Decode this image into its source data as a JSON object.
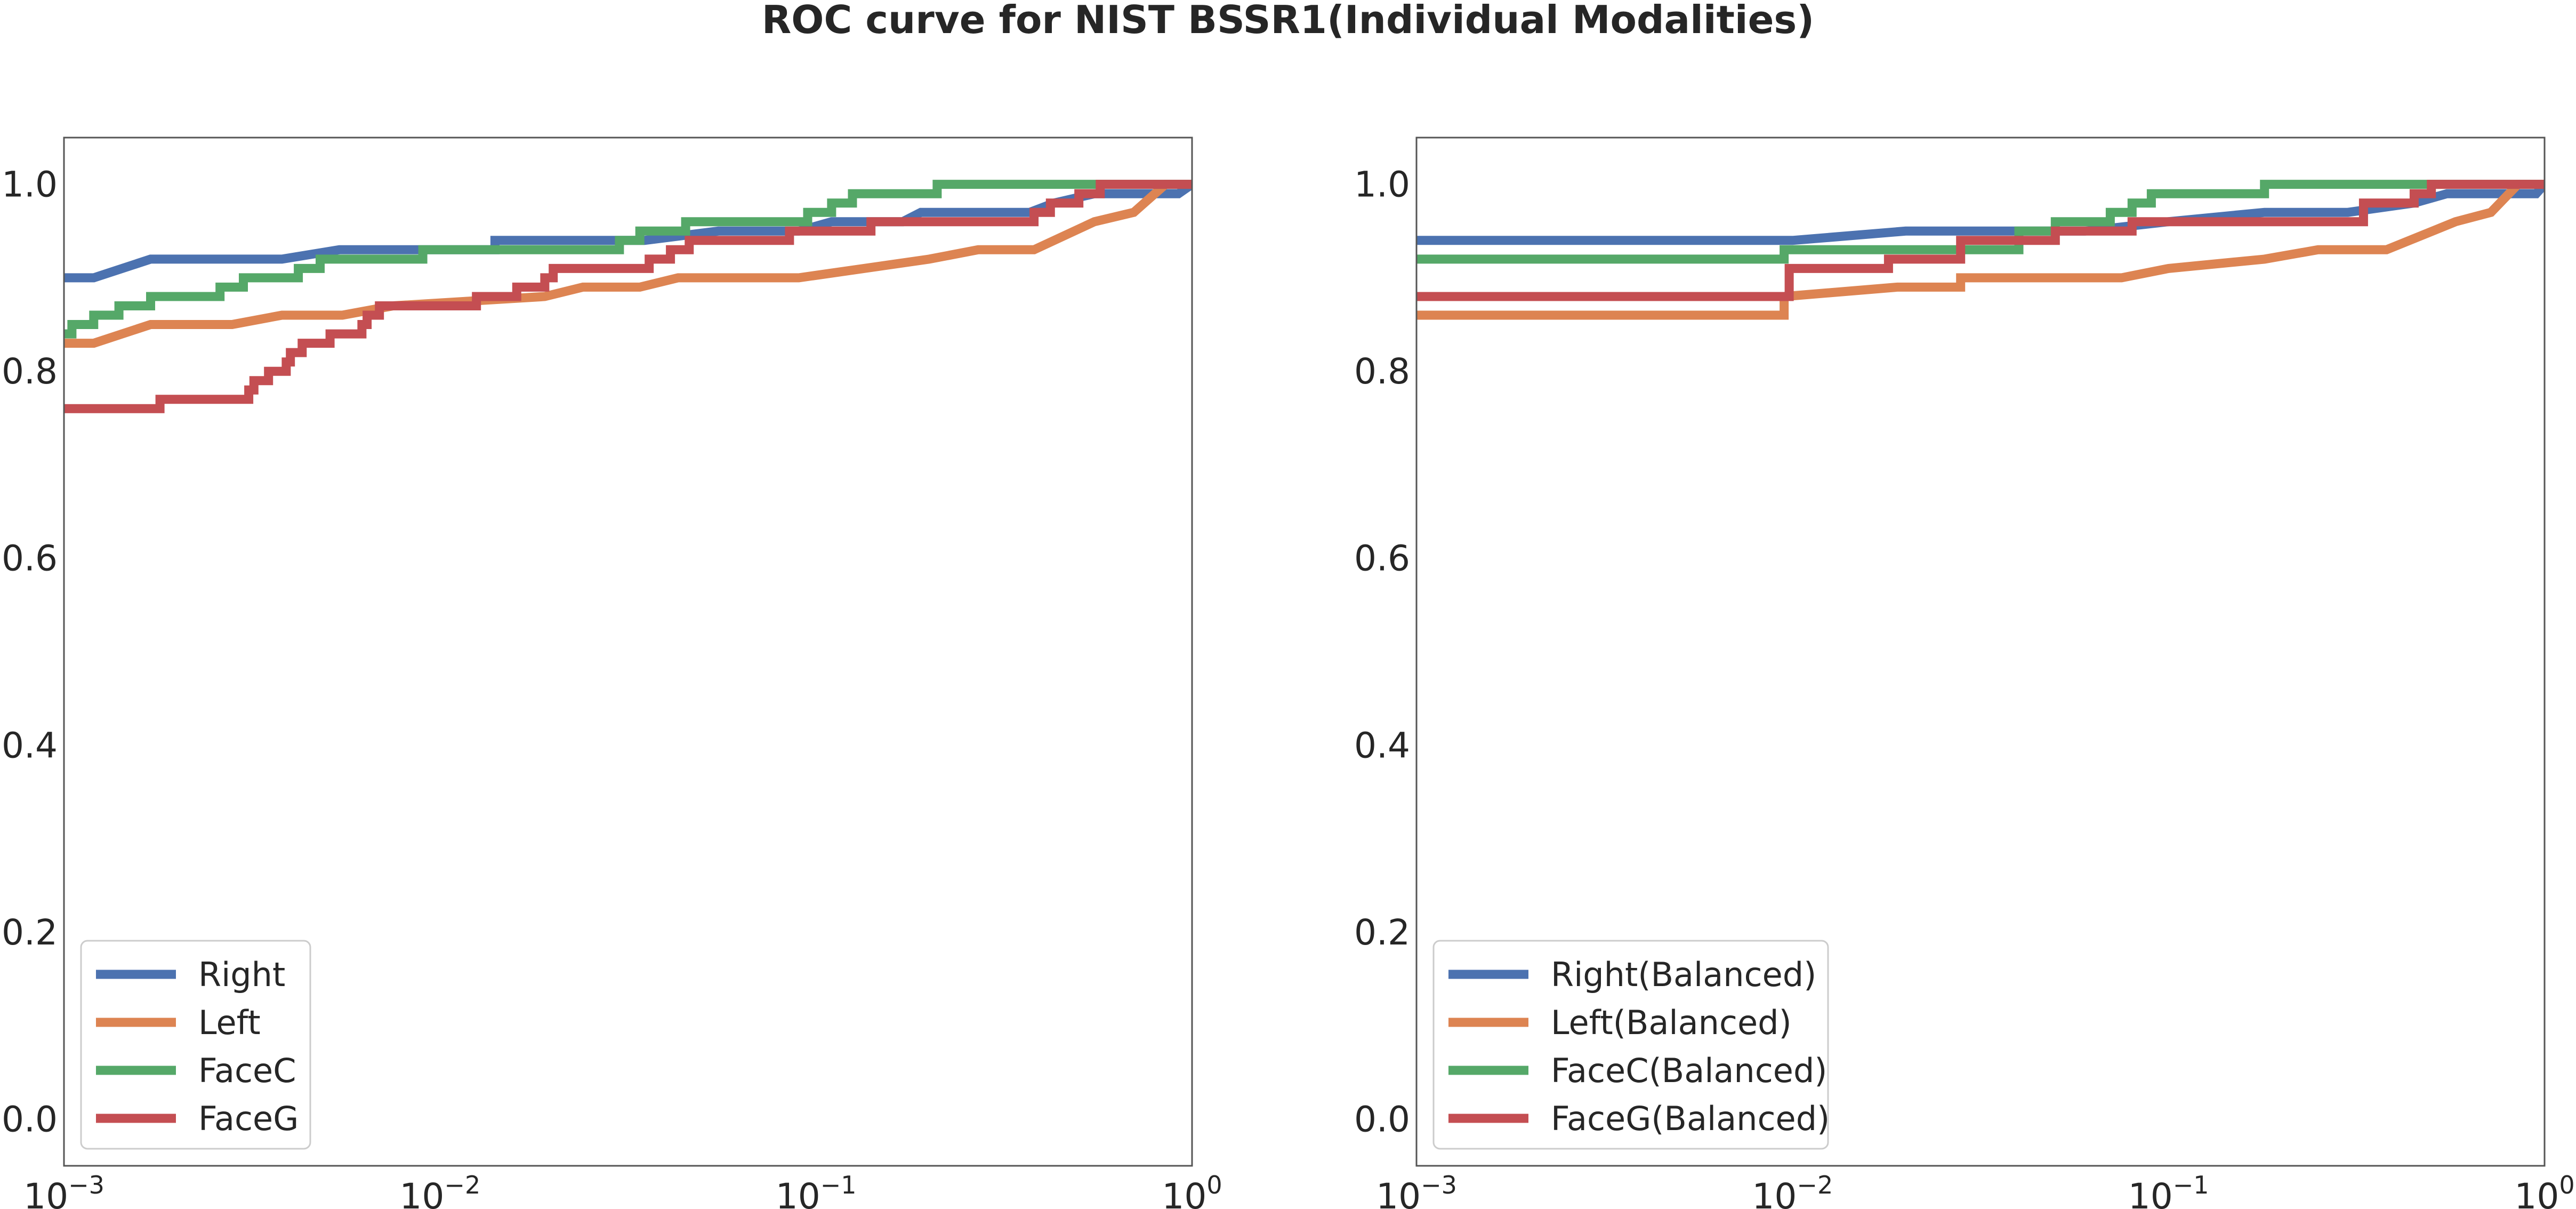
{
  "figure_title": "ROC curve for NIST BSSR1(Individual Modalities)",
  "chart_data": [
    {
      "type": "line",
      "title": "",
      "xlabel": "",
      "ylabel": "",
      "xscale": "log",
      "xlim": [
        0.001,
        1
      ],
      "ylim": [
        -0.05,
        1.05
      ],
      "x_ticks": [
        {
          "base": "10",
          "exp": "−3"
        },
        {
          "base": "10",
          "exp": "−2"
        },
        {
          "base": "10",
          "exp": "−1"
        },
        {
          "base": "10",
          "exp": "0"
        }
      ],
      "y_ticks": [
        "0.0",
        "0.2",
        "0.4",
        "0.6",
        "0.8",
        "1.0"
      ],
      "grid": false,
      "legend_position": "lower-left",
      "series": [
        {
          "name": "Right",
          "color": "#4c72b0",
          "points": [
            [
              0.001,
              0.9
            ],
            [
              0.0012,
              0.9
            ],
            [
              0.0017,
              0.92
            ],
            [
              0.0038,
              0.92
            ],
            [
              0.0054,
              0.93
            ],
            [
              0.014,
              0.93
            ],
            [
              0.014,
              0.94
            ],
            [
              0.035,
              0.94
            ],
            [
              0.055,
              0.95
            ],
            [
              0.09,
              0.95
            ],
            [
              0.11,
              0.96
            ],
            [
              0.17,
              0.96
            ],
            [
              0.19,
              0.97
            ],
            [
              0.37,
              0.97
            ],
            [
              0.43,
              0.98
            ],
            [
              0.55,
              0.99
            ],
            [
              0.92,
              0.99
            ],
            [
              1.0,
              1.0
            ]
          ]
        },
        {
          "name": "Left",
          "color": "#dd8452",
          "points": [
            [
              0.001,
              0.83
            ],
            [
              0.0012,
              0.83
            ],
            [
              0.0017,
              0.85
            ],
            [
              0.0028,
              0.85
            ],
            [
              0.0038,
              0.86
            ],
            [
              0.0055,
              0.86
            ],
            [
              0.0075,
              0.87
            ],
            [
              0.019,
              0.88
            ],
            [
              0.024,
              0.89
            ],
            [
              0.034,
              0.89
            ],
            [
              0.043,
              0.9
            ],
            [
              0.09,
              0.9
            ],
            [
              0.2,
              0.92
            ],
            [
              0.27,
              0.93
            ],
            [
              0.38,
              0.93
            ],
            [
              0.55,
              0.96
            ],
            [
              0.7,
              0.97
            ],
            [
              0.85,
              1.0
            ],
            [
              1.0,
              1.0
            ]
          ]
        },
        {
          "name": "FaceC",
          "color": "#55a868",
          "points": [
            [
              0.001,
              0.84
            ],
            [
              0.00105,
              0.84
            ],
            [
              0.00105,
              0.85
            ],
            [
              0.0012,
              0.85
            ],
            [
              0.0012,
              0.86
            ],
            [
              0.0014,
              0.86
            ],
            [
              0.0014,
              0.87
            ],
            [
              0.0017,
              0.87
            ],
            [
              0.0017,
              0.88
            ],
            [
              0.0026,
              0.88
            ],
            [
              0.0026,
              0.89
            ],
            [
              0.003,
              0.89
            ],
            [
              0.003,
              0.9
            ],
            [
              0.0042,
              0.9
            ],
            [
              0.0042,
              0.91
            ],
            [
              0.0048,
              0.91
            ],
            [
              0.0048,
              0.92
            ],
            [
              0.009,
              0.92
            ],
            [
              0.009,
              0.93
            ],
            [
              0.03,
              0.93
            ],
            [
              0.03,
              0.94
            ],
            [
              0.034,
              0.94
            ],
            [
              0.034,
              0.95
            ],
            [
              0.045,
              0.95
            ],
            [
              0.045,
              0.96
            ],
            [
              0.095,
              0.96
            ],
            [
              0.095,
              0.97
            ],
            [
              0.11,
              0.97
            ],
            [
              0.11,
              0.98
            ],
            [
              0.125,
              0.98
            ],
            [
              0.125,
              0.99
            ],
            [
              0.21,
              0.99
            ],
            [
              0.21,
              1.0
            ],
            [
              1.0,
              1.0
            ]
          ]
        },
        {
          "name": "FaceG",
          "color": "#c44e52",
          "points": [
            [
              0.001,
              0.76
            ],
            [
              0.0018,
              0.76
            ],
            [
              0.0018,
              0.77
            ],
            [
              0.0031,
              0.77
            ],
            [
              0.0031,
              0.78
            ],
            [
              0.0032,
              0.78
            ],
            [
              0.0032,
              0.79
            ],
            [
              0.0035,
              0.79
            ],
            [
              0.0035,
              0.8
            ],
            [
              0.0039,
              0.8
            ],
            [
              0.0039,
              0.81
            ],
            [
              0.004,
              0.81
            ],
            [
              0.004,
              0.82
            ],
            [
              0.0043,
              0.82
            ],
            [
              0.0043,
              0.83
            ],
            [
              0.0051,
              0.83
            ],
            [
              0.0051,
              0.84
            ],
            [
              0.0062,
              0.84
            ],
            [
              0.0062,
              0.85
            ],
            [
              0.0064,
              0.85
            ],
            [
              0.0064,
              0.86
            ],
            [
              0.0069,
              0.86
            ],
            [
              0.0069,
              0.87
            ],
            [
              0.0125,
              0.87
            ],
            [
              0.0125,
              0.88
            ],
            [
              0.016,
              0.88
            ],
            [
              0.016,
              0.89
            ],
            [
              0.019,
              0.89
            ],
            [
              0.019,
              0.9
            ],
            [
              0.02,
              0.9
            ],
            [
              0.02,
              0.91
            ],
            [
              0.036,
              0.91
            ],
            [
              0.036,
              0.92
            ],
            [
              0.041,
              0.92
            ],
            [
              0.041,
              0.93
            ],
            [
              0.046,
              0.93
            ],
            [
              0.046,
              0.94
            ],
            [
              0.085,
              0.94
            ],
            [
              0.085,
              0.95
            ],
            [
              0.14,
              0.95
            ],
            [
              0.14,
              0.96
            ],
            [
              0.38,
              0.96
            ],
            [
              0.38,
              0.97
            ],
            [
              0.42,
              0.97
            ],
            [
              0.42,
              0.98
            ],
            [
              0.5,
              0.98
            ],
            [
              0.5,
              0.99
            ],
            [
              0.57,
              0.99
            ],
            [
              0.57,
              1.0
            ],
            [
              1.0,
              1.0
            ]
          ]
        }
      ]
    },
    {
      "type": "line",
      "title": "",
      "xlabel": "",
      "ylabel": "",
      "xscale": "log",
      "xlim": [
        0.001,
        1
      ],
      "ylim": [
        -0.05,
        1.05
      ],
      "x_ticks": [
        {
          "base": "10",
          "exp": "−3"
        },
        {
          "base": "10",
          "exp": "−2"
        },
        {
          "base": "10",
          "exp": "−1"
        },
        {
          "base": "10",
          "exp": "0"
        }
      ],
      "y_ticks": [
        "0.0",
        "0.2",
        "0.4",
        "0.6",
        "0.8",
        "1.0"
      ],
      "grid": false,
      "legend_position": "lower-left",
      "series": [
        {
          "name": "Right(Balanced)",
          "color": "#4c72b0",
          "points": [
            [
              0.001,
              0.94
            ],
            [
              0.01,
              0.94
            ],
            [
              0.02,
              0.95
            ],
            [
              0.06,
              0.95
            ],
            [
              0.1,
              0.96
            ],
            [
              0.18,
              0.97
            ],
            [
              0.3,
              0.97
            ],
            [
              0.45,
              0.98
            ],
            [
              0.55,
              0.99
            ],
            [
              0.95,
              0.99
            ],
            [
              1.0,
              1.0
            ]
          ]
        },
        {
          "name": "Left(Balanced)",
          "color": "#dd8452",
          "points": [
            [
              0.001,
              0.86
            ],
            [
              0.0095,
              0.86
            ],
            [
              0.0095,
              0.88
            ],
            [
              0.019,
              0.89
            ],
            [
              0.028,
              0.89
            ],
            [
              0.028,
              0.9
            ],
            [
              0.075,
              0.9
            ],
            [
              0.1,
              0.91
            ],
            [
              0.18,
              0.92
            ],
            [
              0.25,
              0.93
            ],
            [
              0.38,
              0.93
            ],
            [
              0.58,
              0.96
            ],
            [
              0.72,
              0.97
            ],
            [
              0.85,
              1.0
            ],
            [
              1.0,
              1.0
            ]
          ]
        },
        {
          "name": "FaceC(Balanced)",
          "color": "#55a868",
          "points": [
            [
              0.001,
              0.92
            ],
            [
              0.0095,
              0.92
            ],
            [
              0.0095,
              0.93
            ],
            [
              0.04,
              0.93
            ],
            [
              0.04,
              0.95
            ],
            [
              0.05,
              0.95
            ],
            [
              0.05,
              0.96
            ],
            [
              0.07,
              0.96
            ],
            [
              0.07,
              0.97
            ],
            [
              0.08,
              0.97
            ],
            [
              0.08,
              0.98
            ],
            [
              0.09,
              0.98
            ],
            [
              0.09,
              0.99
            ],
            [
              0.18,
              0.99
            ],
            [
              0.18,
              1.0
            ],
            [
              1.0,
              1.0
            ]
          ]
        },
        {
          "name": "FaceG(Balanced)",
          "color": "#c44e52",
          "points": [
            [
              0.001,
              0.88
            ],
            [
              0.0098,
              0.88
            ],
            [
              0.0098,
              0.91
            ],
            [
              0.018,
              0.91
            ],
            [
              0.018,
              0.92
            ],
            [
              0.028,
              0.92
            ],
            [
              0.028,
              0.94
            ],
            [
              0.05,
              0.94
            ],
            [
              0.05,
              0.95
            ],
            [
              0.08,
              0.95
            ],
            [
              0.08,
              0.96
            ],
            [
              0.33,
              0.96
            ],
            [
              0.33,
              0.98
            ],
            [
              0.45,
              0.98
            ],
            [
              0.45,
              0.99
            ],
            [
              0.5,
              0.99
            ],
            [
              0.5,
              1.0
            ],
            [
              1.0,
              1.0
            ]
          ]
        }
      ]
    }
  ]
}
